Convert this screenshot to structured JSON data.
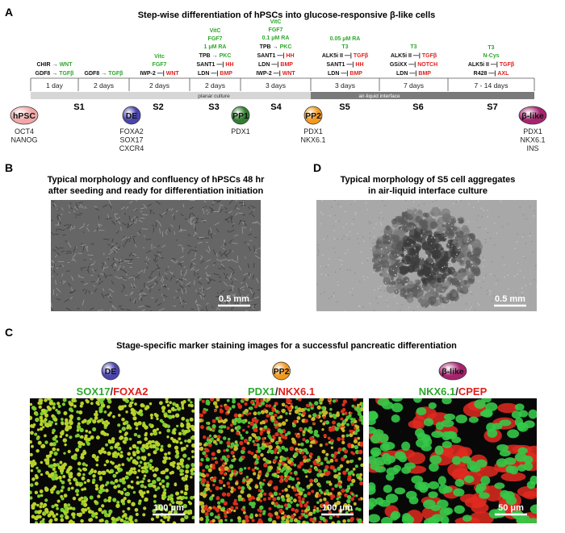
{
  "panel_a": {
    "label": "A",
    "title": "Step-wise differentiation of hPSCs into glucose-responsive β-like cells",
    "columns": [
      {
        "duration": "1 day",
        "conditions": [],
        "factors": [
          {
            "agent": "CHIR",
            "symbol": "→",
            "target": "WNT",
            "effect": "activate"
          },
          {
            "agent": "GDF8",
            "symbol": "→",
            "target": "TGFβ",
            "effect": "activate"
          }
        ]
      },
      {
        "duration": "2 days",
        "conditions": [],
        "factors": [
          {
            "agent": "GDF8",
            "symbol": "→",
            "target": "TGFβ",
            "effect": "activate"
          }
        ]
      },
      {
        "duration": "2 days",
        "conditions": [
          "Vitc",
          "FGF7"
        ],
        "factors": [
          {
            "agent": "IWP-2",
            "symbol": "—|",
            "target": "WNT",
            "effect": "inhibit"
          }
        ]
      },
      {
        "duration": "2 days",
        "conditions": [
          "VitC",
          "FGF7",
          "1 μM RA"
        ],
        "factors": [
          {
            "agent": "TPB",
            "symbol": "→",
            "target": "PKC",
            "effect": "activate"
          },
          {
            "agent": "SANT1",
            "symbol": "—|",
            "target": "HH",
            "effect": "inhibit"
          },
          {
            "agent": "LDN",
            "symbol": "—|",
            "target": "BMP",
            "effect": "inhibit"
          }
        ]
      },
      {
        "duration": "3 days",
        "conditions": [
          "VitC",
          "FGF7",
          "0.1 μM RA"
        ],
        "factors": [
          {
            "agent": "TPB",
            "symbol": "→",
            "target": "PKC",
            "effect": "activate"
          },
          {
            "agent": "SANT1",
            "symbol": "—|",
            "target": "HH",
            "effect": "inhibit"
          },
          {
            "agent": "LDN",
            "symbol": "—|",
            "target": "BMP",
            "effect": "inhibit"
          },
          {
            "agent": "IWP-2",
            "symbol": "—|",
            "target": "WNT",
            "effect": "inhibit"
          }
        ]
      },
      {
        "duration": "3 days",
        "conditions": [
          "0.05 μM RA",
          "T3"
        ],
        "factors": [
          {
            "agent": "ALK5i II",
            "symbol": "—|",
            "target": "TGFβ",
            "effect": "inhibit"
          },
          {
            "agent": "SANT1",
            "symbol": "—|",
            "target": "HH",
            "effect": "inhibit"
          },
          {
            "agent": "LDN",
            "symbol": "—|",
            "target": "BMP",
            "effect": "inhibit"
          }
        ]
      },
      {
        "duration": "7 days",
        "conditions": [
          "T3"
        ],
        "factors": [
          {
            "agent": "ALK5i II",
            "symbol": "—|",
            "target": "TGFβ",
            "effect": "inhibit"
          },
          {
            "agent": "GSiXX",
            "symbol": "—|",
            "target": "NOTCH",
            "effect": "inhibit"
          },
          {
            "agent": "LDN",
            "symbol": "—|",
            "target": "BMP",
            "effect": "inhibit"
          }
        ]
      },
      {
        "duration": "7 - 14 days",
        "conditions": [
          "T3",
          "N-Cys"
        ],
        "factors": [
          {
            "agent": "ALK5i II",
            "symbol": "—|",
            "target": "TGFβ",
            "effect": "inhibit"
          },
          {
            "agent": "R428",
            "symbol": "—|",
            "target": "AXL",
            "effect": "inhibit"
          }
        ]
      }
    ],
    "stages": [
      "S1",
      "S2",
      "S3",
      "S4",
      "S5",
      "S6",
      "S7"
    ],
    "culture": {
      "planar": "planar culture",
      "air_liquid": "air-liquid interface"
    },
    "cell_types": [
      {
        "name": "hPSC",
        "color": "#f0a8a8",
        "markers": [
          "OCT4",
          "NANOG"
        ]
      },
      {
        "name": "DE",
        "color": "#4a44b0",
        "markers": [
          "FOXA2",
          "SOX17",
          "CXCR4"
        ]
      },
      {
        "name": "PP1",
        "color": "#2f7f2f",
        "markers": [
          "PDX1"
        ]
      },
      {
        "name": "PP2",
        "color": "#f39a1e",
        "markers": [
          "PDX1",
          "NKX6.1"
        ]
      },
      {
        "name": "β-like",
        "color": "#a8236f",
        "markers": [
          "PDX1",
          "NKX6.1",
          "INS"
        ]
      }
    ]
  },
  "panel_b": {
    "label": "B",
    "title": [
      "Typical morphology and confluency of hPSCs 48 hr",
      "after seeding and ready for differentiation initiation"
    ],
    "scale_bar": "0.5 mm"
  },
  "panel_d": {
    "label": "D",
    "title": [
      "Typical morphology of S5 cell aggregates",
      "in air-liquid interface culture"
    ],
    "scale_bar": "0.5 mm"
  },
  "panel_c": {
    "label": "C",
    "title": "Stage-specific marker staining images for a successful pancreatic differentiation",
    "images": [
      {
        "cell_type": "DE",
        "color": "#4a44b0",
        "green": "SOX17",
        "separator": "/",
        "red": "FOXA2",
        "scale_bar": "100 μm"
      },
      {
        "cell_type": "PP2",
        "color": "#f39a1e",
        "green": "PDX1",
        "separator": "/",
        "red": "NKX6.1",
        "scale_bar": "100 μm"
      },
      {
        "cell_type": "β-like",
        "color": "#a8236f",
        "green": "NKX6.1",
        "separator": "/",
        "red": "CPEP",
        "scale_bar": "50 μm"
      }
    ]
  }
}
